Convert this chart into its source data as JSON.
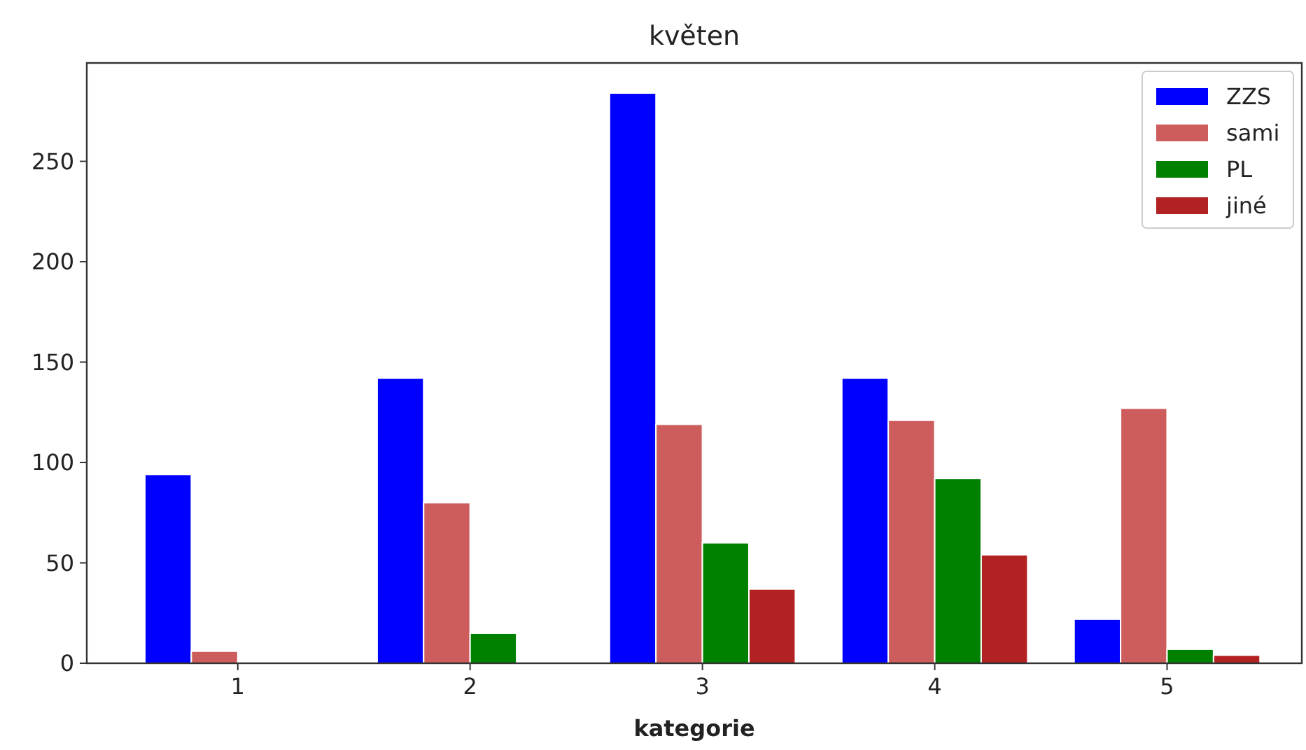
{
  "chart_data": {
    "type": "bar",
    "title": "květen",
    "xlabel": "kategorie",
    "categories": [
      "1",
      "2",
      "3",
      "4",
      "5"
    ],
    "series": [
      {
        "name": "ZZS",
        "color": "#0000ff",
        "values": [
          94,
          142,
          284,
          142,
          22
        ]
      },
      {
        "name": "sami",
        "color": "#cd5c5c",
        "values": [
          6,
          80,
          119,
          121,
          127
        ]
      },
      {
        "name": "PL",
        "color": "#008000",
        "values": [
          0,
          15,
          60,
          92,
          7
        ]
      },
      {
        "name": "jiné",
        "color": "#b22222",
        "values": [
          0,
          0,
          37,
          54,
          4
        ]
      }
    ],
    "ylim": [
      0,
      299
    ],
    "yticks": [
      0,
      50,
      100,
      150,
      200,
      250
    ],
    "grid": false,
    "legend": "top right"
  }
}
